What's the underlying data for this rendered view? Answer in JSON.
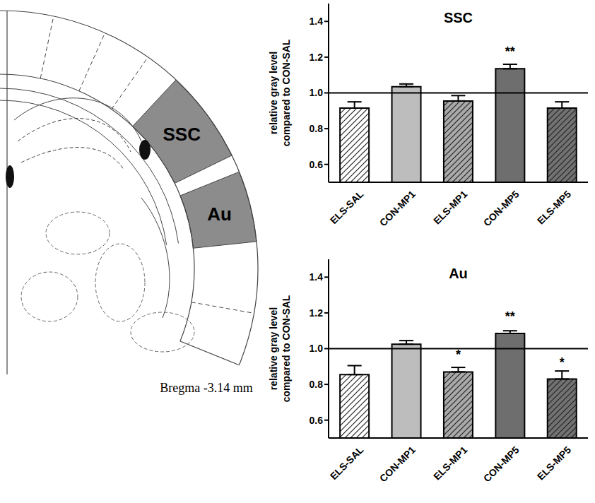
{
  "chart_data": [
    {
      "type": "bar",
      "title": "SSC",
      "y_label": "relative gray level compared to CON-SAL",
      "categories": [
        "ELS-SAL",
        "CON-MP1",
        "ELS-MP1",
        "CON-MP5",
        "ELS-MP5"
      ],
      "values": [
        0.915,
        1.035,
        0.955,
        1.135,
        0.915
      ],
      "errors": [
        0.035,
        0.015,
        0.03,
        0.025,
        0.035
      ],
      "annotations": [
        null,
        null,
        null,
        "**",
        null
      ],
      "colors": [
        "#ffffff",
        "#bdbdbd",
        "#a9a9a9",
        "#6e6e6e",
        "#727272"
      ],
      "ylim": [
        0.5,
        1.5
      ],
      "yticks": [
        0.6,
        0.8,
        {
          "value": 1,
          "label": "1.0"
        },
        1.2,
        1.4
      ],
      "reference_line": 1
    },
    {
      "type": "bar",
      "title": "Au",
      "y_label": "relative gray level compared to CON-SAL",
      "categories": [
        "ELS-SAL",
        "CON-MP1",
        "ELS-MP1",
        "CON-MP5",
        "ELS-MP5"
      ],
      "values": [
        0.855,
        1.025,
        0.87,
        1.085,
        0.83
      ],
      "errors": [
        0.05,
        0.02,
        0.025,
        0.015,
        0.045
      ],
      "annotations": [
        null,
        null,
        "*",
        "**",
        "*"
      ],
      "colors": [
        "#ffffff",
        "#bdbdbd",
        "#a9a9a9",
        "#6e6e6e",
        "#727272"
      ],
      "ylim": [
        0.5,
        1.5
      ],
      "yticks": [
        0.6,
        0.8,
        {
          "value": 1,
          "label": "1.0"
        },
        1.2,
        1.4
      ],
      "reference_line": 1
    }
  ],
  "diagram": {
    "regions": [
      {
        "label": "SSC"
      },
      {
        "label": "Au"
      }
    ],
    "caption": "Bregma -3.14 mm"
  }
}
